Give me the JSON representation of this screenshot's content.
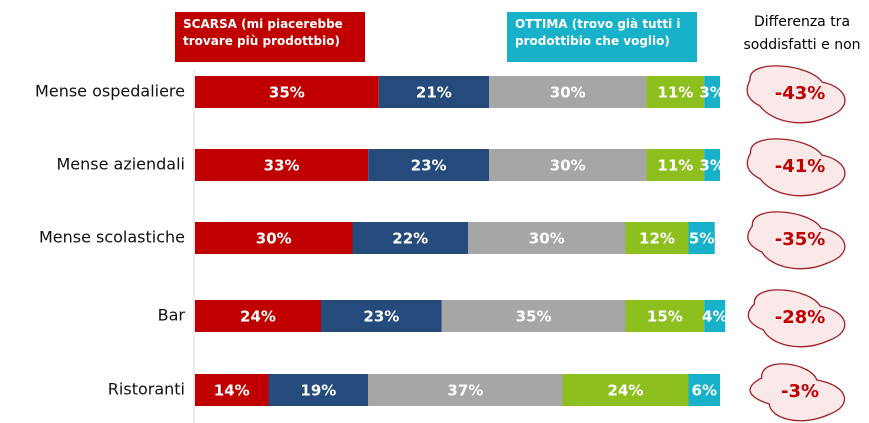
{
  "chart_data": {
    "type": "stacked-bar",
    "categories": [
      "Mense ospedaliere",
      "Mense aziendali",
      "Mense scolastiche",
      "Bar",
      "Ristoranti"
    ],
    "xlim": [
      0,
      100
    ],
    "series": [
      {
        "name": "SCARSA (mi piacerebbe trovare più prodottbio)",
        "color": "#c00000",
        "values": [
          35,
          33,
          30,
          24,
          14
        ],
        "value_labels": [
          "35%",
          "33%",
          "30%",
          "24%",
          "14%"
        ]
      },
      {
        "color": "#244b7c",
        "values": [
          21,
          23,
          22,
          23,
          19
        ],
        "value_labels": [
          "21%",
          "23%",
          "22%",
          "23%",
          "19%"
        ]
      },
      {
        "color": "#a6a6a6",
        "values": [
          30,
          30,
          30,
          35,
          37
        ],
        "value_labels": [
          "30%",
          "30%",
          "30%",
          "35%",
          "37%"
        ]
      },
      {
        "color": "#8dbf1e",
        "values": [
          11,
          11,
          12,
          15,
          24
        ],
        "value_labels": [
          "11%",
          "11%",
          "12%",
          "15%",
          "24%"
        ]
      },
      {
        "name": "OTTIMA (trovo già tutti i prodottibio che voglio)",
        "color": "#17b1c9",
        "values": [
          3,
          3,
          5,
          4,
          6
        ],
        "value_labels": [
          "3%",
          "3%",
          "5%",
          "4%",
          "6%"
        ]
      }
    ],
    "difference": {
      "title": "Differenza tra soddisfatti e non",
      "color": "#c00000",
      "values": [
        -43,
        -41,
        -35,
        -28,
        -3
      ],
      "value_labels": [
        "-43%",
        "-41%",
        "-35%",
        "-28%",
        "-3%"
      ]
    }
  }
}
